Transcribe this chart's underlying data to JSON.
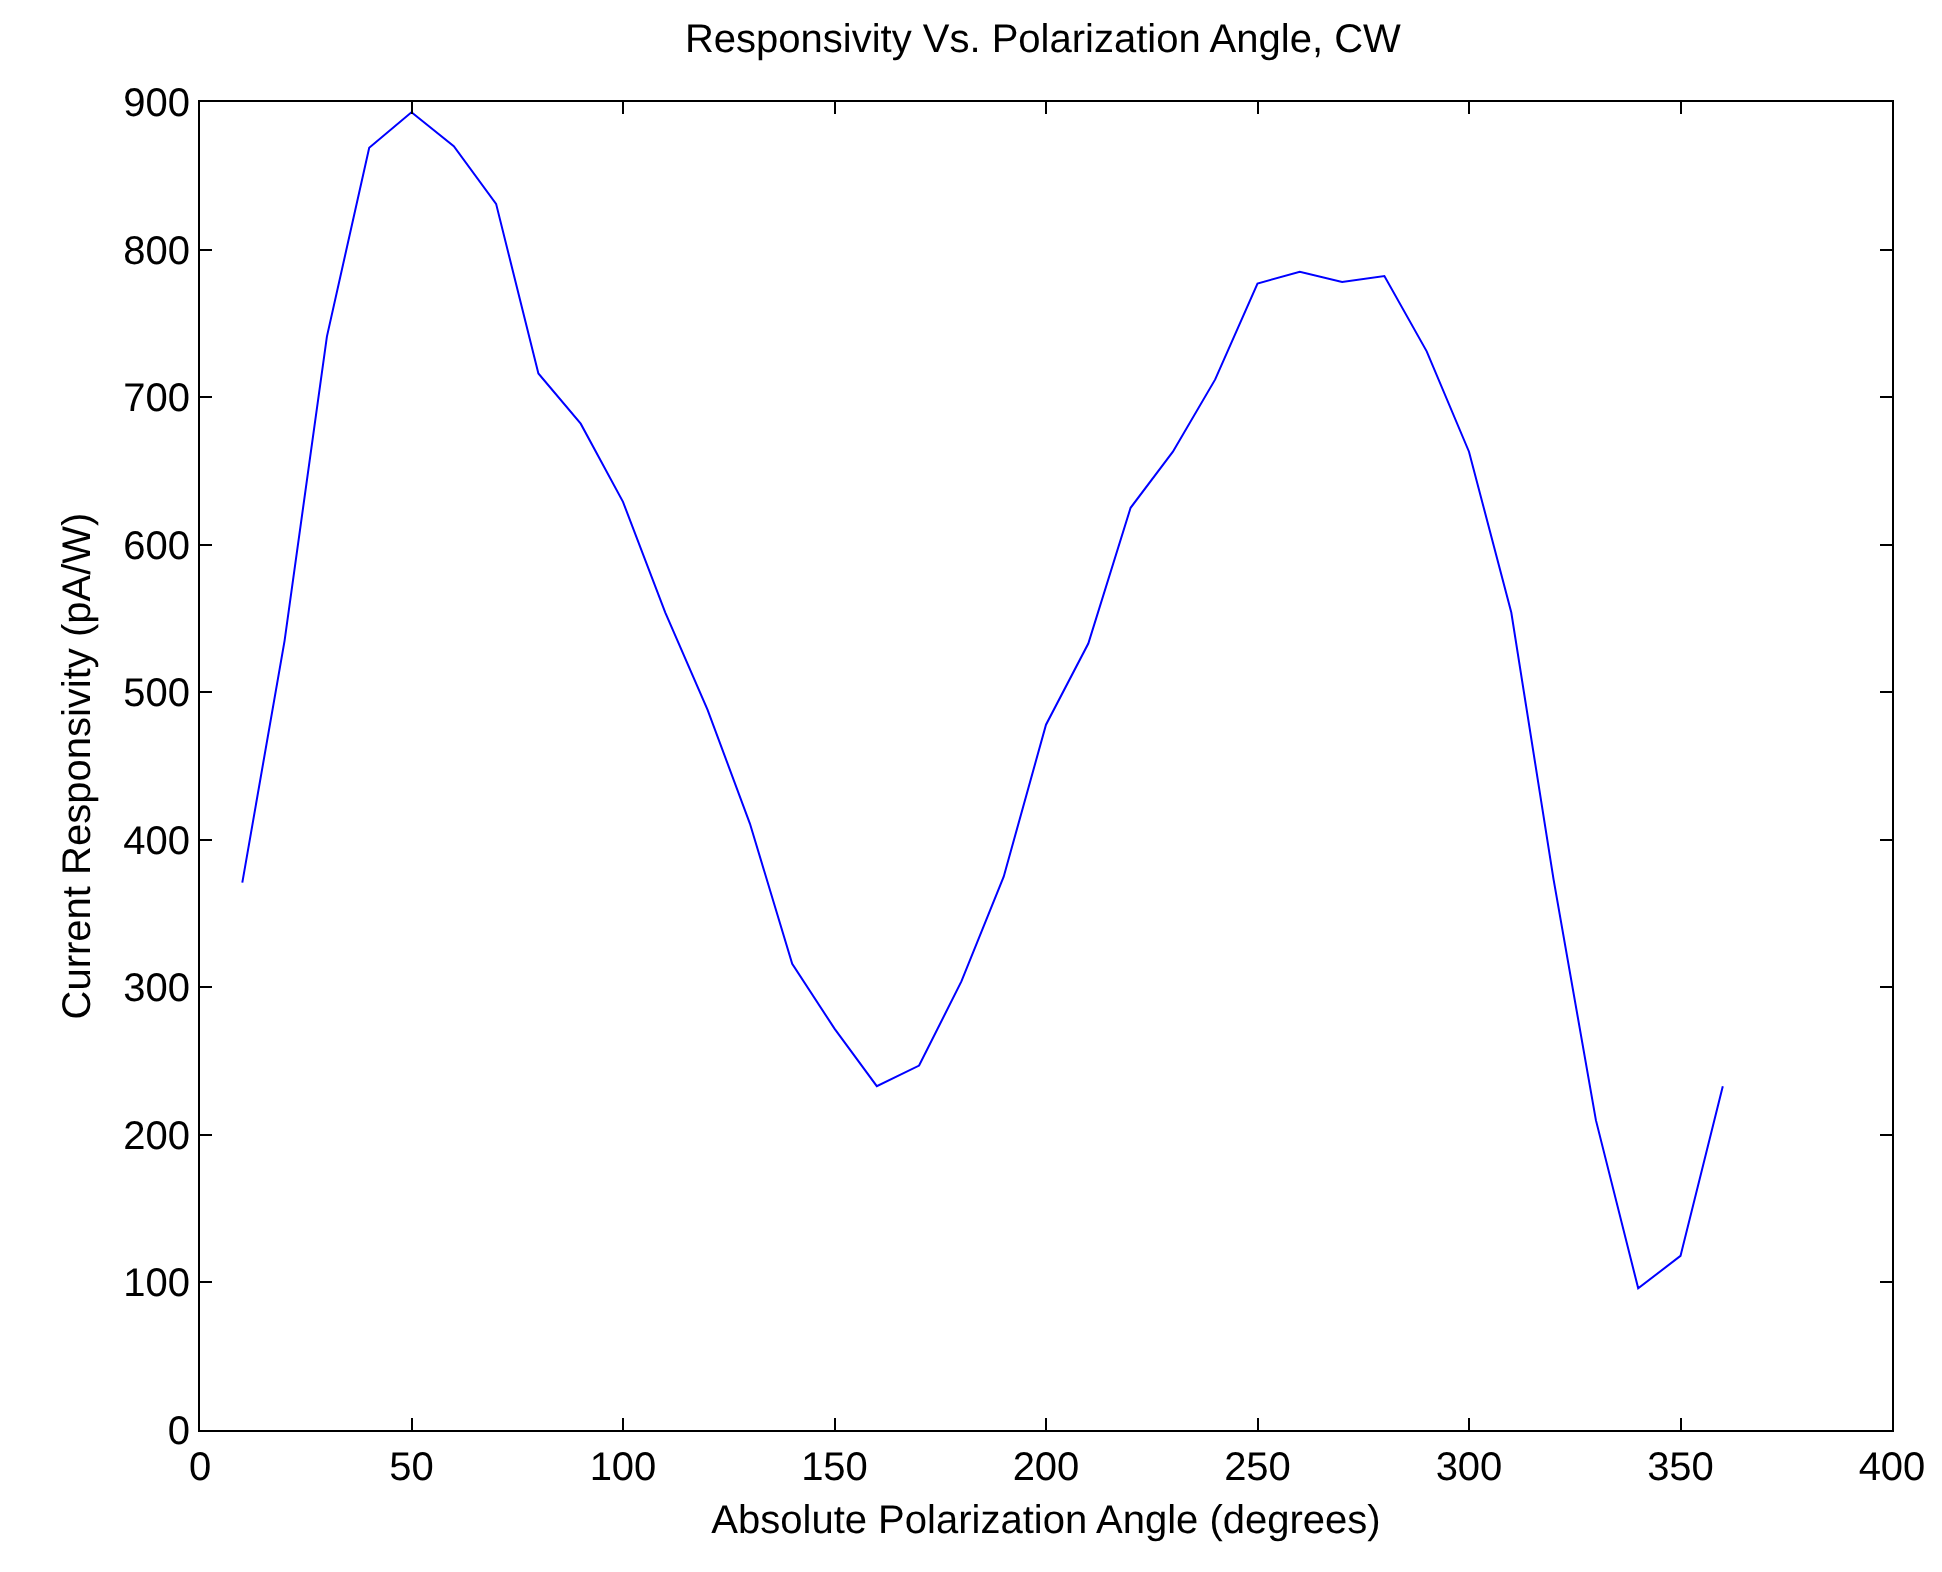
{
  "chart_data": {
    "type": "line",
    "title": "Responsivity Vs. Polarization Angle, CW",
    "xlabel": "Absolute Polarization Angle (degrees)",
    "ylabel": "Current Responsivity (pA/W)",
    "x": [
      10,
      20,
      30,
      40,
      50,
      60,
      70,
      80,
      90,
      100,
      110,
      120,
      130,
      140,
      150,
      160,
      170,
      180,
      190,
      200,
      210,
      220,
      230,
      240,
      250,
      260,
      270,
      280,
      290,
      300,
      310,
      320,
      330,
      340,
      350,
      360
    ],
    "series": [
      {
        "color": "#0000ff",
        "values": [
          371,
          535,
          741,
          869,
          893,
          870,
          831,
          716,
          682,
          629,
          554,
          488,
          411,
          316,
          272,
          233,
          247,
          304,
          375,
          478,
          533,
          625,
          663,
          712,
          777,
          785,
          778,
          782,
          731,
          663,
          554,
          373,
          210,
          96,
          118,
          233
        ]
      }
    ],
    "xlim": [
      0,
      400
    ],
    "xticks": [
      0,
      50,
      100,
      150,
      200,
      250,
      300,
      350,
      400
    ],
    "ylim": [
      0,
      900
    ],
    "yticks": [
      0,
      100,
      200,
      300,
      400,
      500,
      600,
      700,
      800,
      900
    ],
    "grid": false,
    "line_style": "solid",
    "marker": "none"
  }
}
